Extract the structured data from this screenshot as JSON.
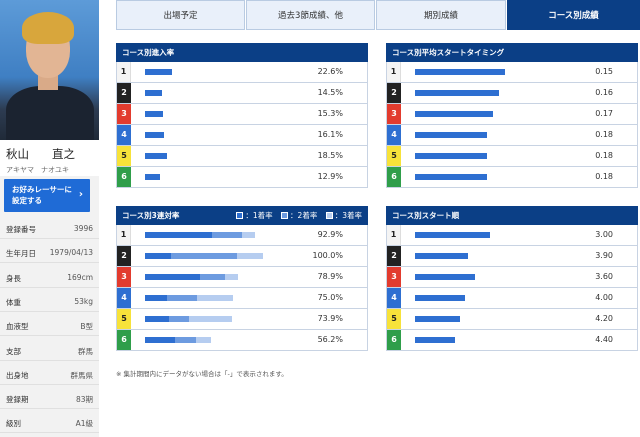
{
  "tabs": [
    {
      "label": "出場予定",
      "active": false
    },
    {
      "label": "過去3節成績、他",
      "active": false
    },
    {
      "label": "期別成績",
      "active": false
    },
    {
      "label": "コース別成績",
      "active": true
    }
  ],
  "profile": {
    "name": "秋山　　直之",
    "kana": "アキヤマ　ナオユキ",
    "fav_button": "お好みレーサーに\n設定する",
    "info": [
      {
        "label": "登録番号",
        "value": "3996"
      },
      {
        "label": "生年月日",
        "value": "1979/04/13"
      },
      {
        "label": "身長",
        "value": "169cm"
      },
      {
        "label": "体重",
        "value": "53kg"
      },
      {
        "label": "血液型",
        "value": "B型"
      },
      {
        "label": "支部",
        "value": "群馬"
      },
      {
        "label": "出身地",
        "value": "群馬県"
      },
      {
        "label": "登録期",
        "value": "83期"
      },
      {
        "label": "級別",
        "value": "A1級"
      }
    ]
  },
  "panels": {
    "entry_rate": {
      "title": "コース別進入率",
      "rows": [
        {
          "lane": "1",
          "value": "22.6%",
          "pct": 22.6
        },
        {
          "lane": "2",
          "value": "14.5%",
          "pct": 14.5
        },
        {
          "lane": "3",
          "value": "15.3%",
          "pct": 15.3
        },
        {
          "lane": "4",
          "value": "16.1%",
          "pct": 16.1
        },
        {
          "lane": "5",
          "value": "18.5%",
          "pct": 18.5
        },
        {
          "lane": "6",
          "value": "12.9%",
          "pct": 12.9
        }
      ]
    },
    "avg_start": {
      "title": "コース別平均スタートタイミング",
      "rows": [
        {
          "lane": "1",
          "value": "0.15"
        },
        {
          "lane": "2",
          "value": "0.16"
        },
        {
          "lane": "3",
          "value": "0.17"
        },
        {
          "lane": "4",
          "value": "0.18"
        },
        {
          "lane": "5",
          "value": "0.18"
        },
        {
          "lane": "6",
          "value": "0.18"
        }
      ]
    },
    "top3_rate": {
      "title": "コース別3連対率",
      "legend": [
        "：1着率",
        "：2着率",
        "：3着率"
      ],
      "rows": [
        {
          "lane": "1",
          "value": "92.9%",
          "first": 57,
          "second": 82,
          "third": 92.9
        },
        {
          "lane": "2",
          "value": "100.0%",
          "first": 22,
          "second": 78,
          "third": 100
        },
        {
          "lane": "3",
          "value": "78.9%",
          "first": 47,
          "second": 68,
          "third": 78.9
        },
        {
          "lane": "4",
          "value": "75.0%",
          "first": 19,
          "second": 44,
          "third": 75
        },
        {
          "lane": "5",
          "value": "73.9%",
          "first": 20,
          "second": 37,
          "third": 73.9
        },
        {
          "lane": "6",
          "value": "56.2%",
          "first": 25,
          "second": 43,
          "third": 56.2
        }
      ]
    },
    "start_order": {
      "title": "コース別スタート順",
      "rows": [
        {
          "lane": "1",
          "value": "3.00",
          "num": 3.0
        },
        {
          "lane": "2",
          "value": "3.90",
          "num": 3.9
        },
        {
          "lane": "3",
          "value": "3.60",
          "num": 3.6
        },
        {
          "lane": "4",
          "value": "4.00",
          "num": 4.0
        },
        {
          "lane": "5",
          "value": "4.20",
          "num": 4.2
        },
        {
          "lane": "6",
          "value": "4.40",
          "num": 4.4
        }
      ]
    }
  },
  "footnote": "※ 集計期間内にデータがない場合は「-」で表示されます。"
}
